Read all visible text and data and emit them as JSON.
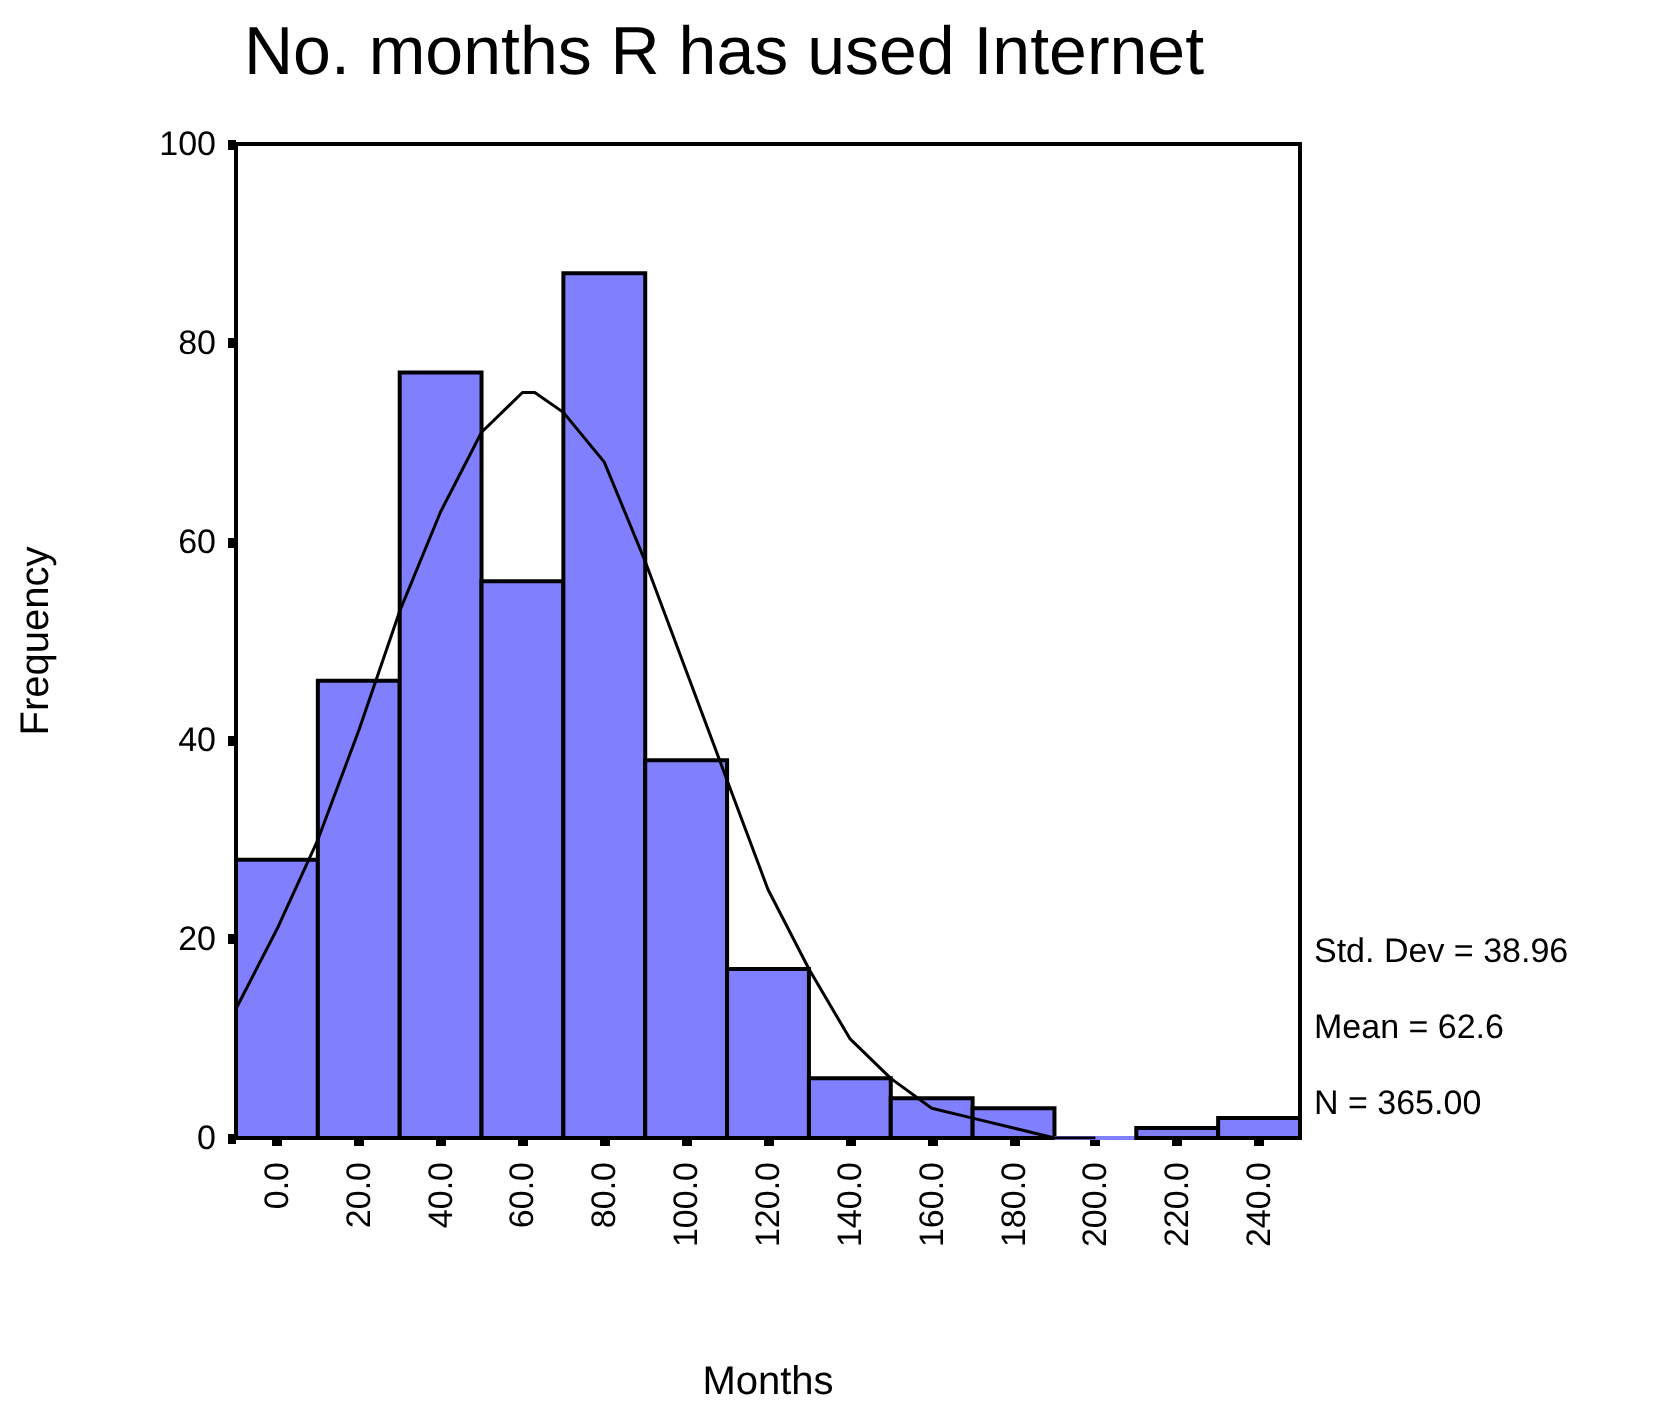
{
  "chart_data": {
    "type": "histogram",
    "title": "No. months R has used Internet",
    "xlabel": "Months",
    "ylabel": "Frequency",
    "bins": [
      -10,
      10,
      30,
      50,
      70,
      90,
      110,
      130,
      150,
      170,
      190,
      210,
      230,
      250
    ],
    "values": [
      28,
      46,
      77,
      56,
      87,
      38,
      17,
      6,
      4,
      3,
      0,
      1,
      2
    ],
    "color": "#8080ff",
    "series": [
      {
        "type": "line",
        "color": "#000000",
        "x": [
          -10,
          0,
          10,
          20,
          30,
          40,
          50,
          60,
          63,
          70,
          80,
          90,
          100,
          110,
          120,
          130,
          140,
          150,
          160,
          170,
          180,
          190,
          200
        ],
        "values": [
          13,
          21,
          30,
          41,
          53,
          63,
          71,
          75,
          75,
          73,
          68,
          58,
          47,
          36,
          25,
          17,
          10,
          6,
          3,
          2,
          1,
          0,
          0
        ]
      }
    ],
    "xlim": [
      -10,
      250
    ],
    "xticks": [
      {
        "value": 0,
        "label": "0.0"
      },
      {
        "value": 20,
        "label": "20.0"
      },
      {
        "value": 40,
        "label": "40.0"
      },
      {
        "value": 60,
        "label": "60.0"
      },
      {
        "value": 80,
        "label": "80.0"
      },
      {
        "value": 100,
        "label": "100.0"
      },
      {
        "value": 120,
        "label": "120.0"
      },
      {
        "value": 140,
        "label": "140.0"
      },
      {
        "value": 160,
        "label": "160.0"
      },
      {
        "value": 180,
        "label": "180.0"
      },
      {
        "value": 200,
        "label": "200.0"
      },
      {
        "value": 220,
        "label": "220.0"
      },
      {
        "value": 240,
        "label": "240.0"
      }
    ],
    "ylim": [
      0,
      100
    ],
    "yticks": [
      0,
      20,
      40,
      60,
      80,
      100
    ],
    "annotations": [
      "Std. Dev = 38.96",
      "Mean = 62.6",
      "N = 365.00"
    ],
    "grid": false,
    "legend": false,
    "marker": "none",
    "line_style": "solid"
  }
}
